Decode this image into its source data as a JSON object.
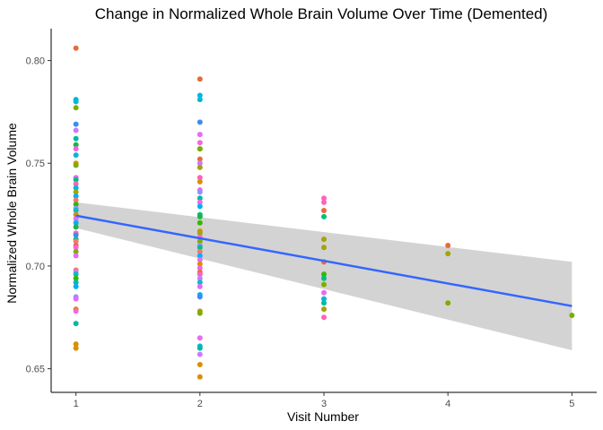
{
  "chart_data": {
    "type": "scatter",
    "title": "Change in Normalized Whole Brain Volume Over Time (Demented)",
    "xlabel": "Visit Number",
    "ylabel": "Normalized Whole Brain Volume",
    "xlim": [
      0.8,
      5.2
    ],
    "ylim": [
      0.6385,
      0.8155
    ],
    "x_ticks": [
      1,
      2,
      3,
      4,
      5
    ],
    "y_ticks": [
      0.65,
      0.7,
      0.75,
      0.8
    ],
    "y_tick_labels": [
      "0.65",
      "0.70",
      "0.75",
      "0.80"
    ],
    "grid": false,
    "legend": "none",
    "colors": {
      "regression_line": "#3366FF",
      "confidence_band": "#D3D3D3",
      "axis": "#000000",
      "tick_text": "#4D4D4D"
    },
    "regression": {
      "x": [
        1,
        5
      ],
      "fit": [
        0.7245,
        0.6805
      ],
      "ci_lower": [
        0.7185,
        0.659
      ],
      "ci_upper": [
        0.731,
        0.702
      ]
    },
    "points": [
      {
        "x": 1,
        "y": 0.806,
        "color": "#E76B3C"
      },
      {
        "x": 1,
        "y": 0.781,
        "color": "#00B8D8"
      },
      {
        "x": 1,
        "y": 0.78,
        "color": "#00B8D8"
      },
      {
        "x": 1,
        "y": 0.777,
        "color": "#7CAE00"
      },
      {
        "x": 1,
        "y": 0.769,
        "color": "#3E8BF2"
      },
      {
        "x": 1,
        "y": 0.766,
        "color": "#C77CFF"
      },
      {
        "x": 1,
        "y": 0.762,
        "color": "#00B9A8"
      },
      {
        "x": 1,
        "y": 0.759,
        "color": "#1FB14A"
      },
      {
        "x": 1,
        "y": 0.757,
        "color": "#F564E3"
      },
      {
        "x": 1,
        "y": 0.754,
        "color": "#00B8D8"
      },
      {
        "x": 1,
        "y": 0.75,
        "color": "#D89000"
      },
      {
        "x": 1,
        "y": 0.749,
        "color": "#7CAE00"
      },
      {
        "x": 1,
        "y": 0.743,
        "color": "#E76BF3"
      },
      {
        "x": 1,
        "y": 0.742,
        "color": "#00BF7D"
      },
      {
        "x": 1,
        "y": 0.74,
        "color": "#FF62BC"
      },
      {
        "x": 1,
        "y": 0.738,
        "color": "#00B8D8"
      },
      {
        "x": 1,
        "y": 0.736,
        "color": "#A3A500"
      },
      {
        "x": 1,
        "y": 0.734,
        "color": "#00B0F6"
      },
      {
        "x": 1,
        "y": 0.732,
        "color": "#F8766D"
      },
      {
        "x": 1,
        "y": 0.73,
        "color": "#39B600"
      },
      {
        "x": 1,
        "y": 0.728,
        "color": "#9590FF"
      },
      {
        "x": 1,
        "y": 0.727,
        "color": "#00BFC4"
      },
      {
        "x": 1,
        "y": 0.725,
        "color": "#D89000"
      },
      {
        "x": 1,
        "y": 0.723,
        "color": "#E76BF3"
      },
      {
        "x": 1,
        "y": 0.721,
        "color": "#00B0F6"
      },
      {
        "x": 1,
        "y": 0.719,
        "color": "#1FB14A"
      },
      {
        "x": 1,
        "y": 0.716,
        "color": "#FF62BC"
      },
      {
        "x": 1,
        "y": 0.715,
        "color": "#3E8BF2"
      },
      {
        "x": 1,
        "y": 0.713,
        "color": "#00C08B"
      },
      {
        "x": 1,
        "y": 0.712,
        "color": "#F8766D"
      },
      {
        "x": 1,
        "y": 0.71,
        "color": "#E76B3C"
      },
      {
        "x": 1,
        "y": 0.709,
        "color": "#F564E3"
      },
      {
        "x": 1,
        "y": 0.707,
        "color": "#7CAE00"
      },
      {
        "x": 1,
        "y": 0.705,
        "color": "#E76BF3"
      },
      {
        "x": 1,
        "y": 0.698,
        "color": "#F8766D"
      },
      {
        "x": 1,
        "y": 0.697,
        "color": "#C77CFF"
      },
      {
        "x": 1,
        "y": 0.696,
        "color": "#00BFC4"
      },
      {
        "x": 1,
        "y": 0.694,
        "color": "#39B600"
      },
      {
        "x": 1,
        "y": 0.692,
        "color": "#00B9A8"
      },
      {
        "x": 1,
        "y": 0.69,
        "color": "#00B0F6"
      },
      {
        "x": 1,
        "y": 0.685,
        "color": "#9590FF"
      },
      {
        "x": 1,
        "y": 0.684,
        "color": "#E76BF3"
      },
      {
        "x": 1,
        "y": 0.679,
        "color": "#D89000"
      },
      {
        "x": 1,
        "y": 0.678,
        "color": "#F564E3"
      },
      {
        "x": 1,
        "y": 0.672,
        "color": "#00B9A8"
      },
      {
        "x": 1,
        "y": 0.662,
        "color": "#D89000"
      },
      {
        "x": 1,
        "y": 0.66,
        "color": "#D89000"
      },
      {
        "x": 2,
        "y": 0.791,
        "color": "#E76B3C"
      },
      {
        "x": 2,
        "y": 0.783,
        "color": "#00B8D8"
      },
      {
        "x": 2,
        "y": 0.781,
        "color": "#00B8D8"
      },
      {
        "x": 2,
        "y": 0.77,
        "color": "#3E8BF2"
      },
      {
        "x": 2,
        "y": 0.764,
        "color": "#E76BF3"
      },
      {
        "x": 2,
        "y": 0.76,
        "color": "#F564E3"
      },
      {
        "x": 2,
        "y": 0.757,
        "color": "#39B600"
      },
      {
        "x": 2,
        "y": 0.757,
        "color": "#7CAE00"
      },
      {
        "x": 2,
        "y": 0.752,
        "color": "#E76B3C"
      },
      {
        "x": 2,
        "y": 0.75,
        "color": "#C77CFF"
      },
      {
        "x": 2,
        "y": 0.748,
        "color": "#A3A500"
      },
      {
        "x": 2,
        "y": 0.743,
        "color": "#FF62BC"
      },
      {
        "x": 2,
        "y": 0.741,
        "color": "#D89000"
      },
      {
        "x": 2,
        "y": 0.737,
        "color": "#E76BF3"
      },
      {
        "x": 2,
        "y": 0.736,
        "color": "#9590FF"
      },
      {
        "x": 2,
        "y": 0.733,
        "color": "#00B9A8"
      },
      {
        "x": 2,
        "y": 0.731,
        "color": "#F564E3"
      },
      {
        "x": 2,
        "y": 0.729,
        "color": "#00B0F6"
      },
      {
        "x": 2,
        "y": 0.725,
        "color": "#00BF7D"
      },
      {
        "x": 2,
        "y": 0.724,
        "color": "#1FB14A"
      },
      {
        "x": 2,
        "y": 0.721,
        "color": "#39B600"
      },
      {
        "x": 2,
        "y": 0.717,
        "color": "#D89000"
      },
      {
        "x": 2,
        "y": 0.716,
        "color": "#A3A500"
      },
      {
        "x": 2,
        "y": 0.714,
        "color": "#F564E3"
      },
      {
        "x": 2,
        "y": 0.712,
        "color": "#7CAE00"
      },
      {
        "x": 2,
        "y": 0.71,
        "color": "#9590FF"
      },
      {
        "x": 2,
        "y": 0.709,
        "color": "#00C08B"
      },
      {
        "x": 2,
        "y": 0.707,
        "color": "#F8766D"
      },
      {
        "x": 2,
        "y": 0.705,
        "color": "#00B0F6"
      },
      {
        "x": 2,
        "y": 0.703,
        "color": "#E76BF3"
      },
      {
        "x": 2,
        "y": 0.701,
        "color": "#D89000"
      },
      {
        "x": 2,
        "y": 0.699,
        "color": "#F564E3"
      },
      {
        "x": 2,
        "y": 0.697,
        "color": "#E76B3C"
      },
      {
        "x": 2,
        "y": 0.696,
        "color": "#FF62BC"
      },
      {
        "x": 2,
        "y": 0.694,
        "color": "#C77CFF"
      },
      {
        "x": 2,
        "y": 0.692,
        "color": "#00BFC4"
      },
      {
        "x": 2,
        "y": 0.69,
        "color": "#E76BF3"
      },
      {
        "x": 2,
        "y": 0.686,
        "color": "#00B0F6"
      },
      {
        "x": 2,
        "y": 0.685,
        "color": "#3E8BF2"
      },
      {
        "x": 2,
        "y": 0.678,
        "color": "#A3A500"
      },
      {
        "x": 2,
        "y": 0.677,
        "color": "#7CAE00"
      },
      {
        "x": 2,
        "y": 0.665,
        "color": "#E76BF3"
      },
      {
        "x": 2,
        "y": 0.661,
        "color": "#00B8D8"
      },
      {
        "x": 2,
        "y": 0.66,
        "color": "#00B9A8"
      },
      {
        "x": 2,
        "y": 0.657,
        "color": "#C77CFF"
      },
      {
        "x": 2,
        "y": 0.652,
        "color": "#D89000"
      },
      {
        "x": 2,
        "y": 0.646,
        "color": "#D89000"
      },
      {
        "x": 3,
        "y": 0.733,
        "color": "#FF62BC"
      },
      {
        "x": 3,
        "y": 0.731,
        "color": "#FF62BC"
      },
      {
        "x": 3,
        "y": 0.727,
        "color": "#E76B3C"
      },
      {
        "x": 3,
        "y": 0.724,
        "color": "#00BF7D"
      },
      {
        "x": 3,
        "y": 0.713,
        "color": "#A3A500"
      },
      {
        "x": 3,
        "y": 0.709,
        "color": "#A3A500"
      },
      {
        "x": 3,
        "y": 0.702,
        "color": "#E76B3C"
      },
      {
        "x": 3,
        "y": 0.696,
        "color": "#39B600"
      },
      {
        "x": 3,
        "y": 0.694,
        "color": "#00BF7D"
      },
      {
        "x": 3,
        "y": 0.691,
        "color": "#7CAE00"
      },
      {
        "x": 3,
        "y": 0.687,
        "color": "#E76BF3"
      },
      {
        "x": 3,
        "y": 0.684,
        "color": "#00B8D8"
      },
      {
        "x": 3,
        "y": 0.682,
        "color": "#00B9A8"
      },
      {
        "x": 3,
        "y": 0.679,
        "color": "#A3A500"
      },
      {
        "x": 3,
        "y": 0.675,
        "color": "#FF62BC"
      },
      {
        "x": 4,
        "y": 0.71,
        "color": "#E76B3C"
      },
      {
        "x": 4,
        "y": 0.706,
        "color": "#A3A500"
      },
      {
        "x": 4,
        "y": 0.682,
        "color": "#7CAE00"
      },
      {
        "x": 5,
        "y": 0.676,
        "color": "#7CAE00"
      }
    ]
  }
}
